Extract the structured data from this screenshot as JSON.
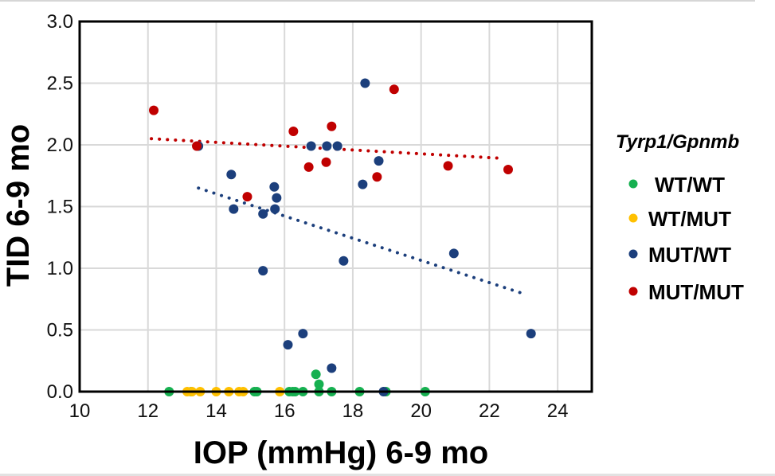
{
  "chart_data": {
    "type": "scatter",
    "title": "",
    "xlabel": "IOP (mmHg) 6-9 mo",
    "ylabel": "TID 6-9 mo",
    "xlim": [
      10,
      25
    ],
    "ylim": [
      0,
      3.0
    ],
    "x_ticks": [
      10,
      12,
      14,
      16,
      18,
      20,
      22,
      24
    ],
    "y_ticks": [
      0.0,
      0.5,
      1.0,
      1.5,
      2.0,
      2.5,
      3.0
    ],
    "x_tick_labels": [
      "10",
      "12",
      "14",
      "16",
      "18",
      "20",
      "22",
      "24"
    ],
    "y_tick_labels": [
      "0.0",
      "0.5",
      "1.0",
      "1.5",
      "2.0",
      "2.5",
      "3.0"
    ],
    "grid": true,
    "legend": {
      "title": "Tyrp1/Gpnmb",
      "placement": "right"
    },
    "series": [
      {
        "name": "WT/WT",
        "color": "#16b050",
        "points": [
          [
            12.62,
            0
          ],
          [
            13.27,
            0
          ],
          [
            15.12,
            0
          ],
          [
            15.19,
            0
          ],
          [
            16.14,
            0
          ],
          [
            16.24,
            0
          ],
          [
            16.31,
            0
          ],
          [
            16.54,
            0
          ],
          [
            17.01,
            0
          ],
          [
            17.38,
            0
          ],
          [
            18.2,
            0
          ],
          [
            18.97,
            0
          ],
          [
            20.12,
            0
          ],
          [
            16.92,
            0.14
          ],
          [
            17.01,
            0.06
          ]
        ]
      },
      {
        "name": "WT/MUT",
        "color": "#ffc000",
        "points": [
          [
            13.15,
            0
          ],
          [
            13.29,
            0
          ],
          [
            13.53,
            0
          ],
          [
            14.0,
            0
          ],
          [
            14.37,
            0
          ],
          [
            14.67,
            0
          ],
          [
            14.79,
            0
          ],
          [
            15.86,
            0
          ]
        ]
      },
      {
        "name": "MUT/WT",
        "color": "#1c3f7c",
        "points": [
          [
            13.48,
            1.99
          ],
          [
            14.44,
            1.76
          ],
          [
            14.51,
            1.48
          ],
          [
            15.37,
            1.44
          ],
          [
            15.37,
            0.98
          ],
          [
            15.7,
            1.66
          ],
          [
            15.77,
            1.57
          ],
          [
            15.72,
            1.48
          ],
          [
            16.78,
            1.99
          ],
          [
            17.24,
            1.99
          ],
          [
            17.55,
            1.99
          ],
          [
            18.36,
            2.5
          ],
          [
            18.29,
            1.68
          ],
          [
            18.76,
            1.87
          ],
          [
            17.73,
            1.06
          ],
          [
            20.96,
            1.12
          ],
          [
            23.22,
            0.47
          ],
          [
            16.1,
            0.38
          ],
          [
            16.54,
            0.47
          ],
          [
            17.38,
            0.19
          ],
          [
            18.9,
            0
          ]
        ],
        "trendline": {
          "x": [
            13.48,
            23.04
          ],
          "y": [
            1.65,
            0.79
          ],
          "style": "dotted"
        }
      },
      {
        "name": "MUT/MUT",
        "color": "#c00000",
        "points": [
          [
            12.17,
            2.28
          ],
          [
            13.43,
            1.99
          ],
          [
            14.91,
            1.58
          ],
          [
            16.26,
            2.11
          ],
          [
            17.38,
            2.15
          ],
          [
            16.71,
            1.82
          ],
          [
            17.22,
            1.86
          ],
          [
            18.71,
            1.74
          ],
          [
            19.21,
            2.45
          ],
          [
            20.79,
            1.83
          ],
          [
            22.55,
            1.8
          ]
        ],
        "trendline": {
          "x": [
            12.1,
            22.43
          ],
          "y": [
            2.05,
            1.89
          ],
          "style": "dotted"
        }
      }
    ]
  }
}
